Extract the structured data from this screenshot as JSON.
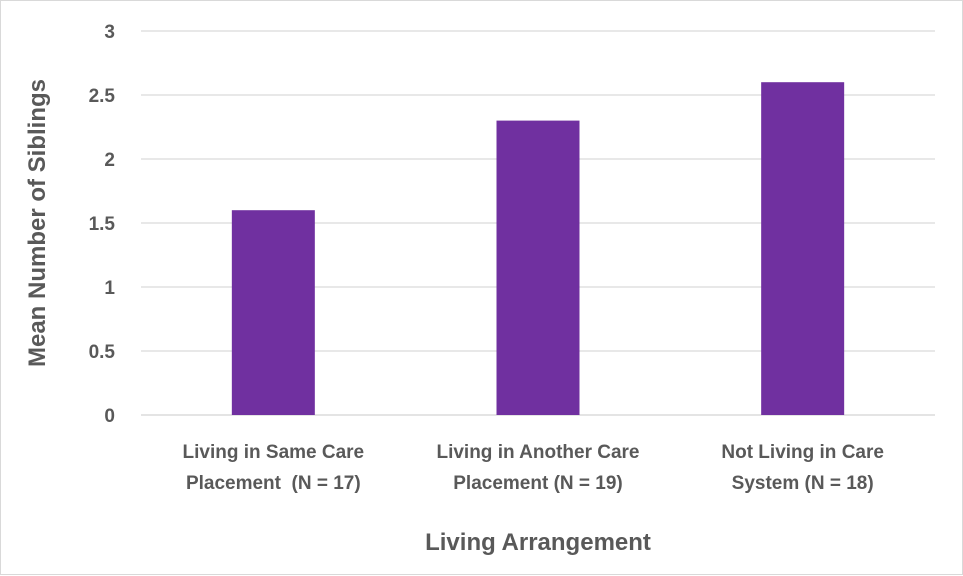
{
  "chart_data": {
    "type": "bar",
    "title": "",
    "xlabel": "Living Arrangement",
    "ylabel": "Mean Number of Siblings",
    "ylim": [
      0,
      3
    ],
    "yticks": [
      0,
      0.5,
      1,
      1.5,
      2,
      2.5,
      3
    ],
    "ytick_labels": [
      "0",
      "0.5",
      "1",
      "1.5",
      "2",
      "2.5",
      "3"
    ],
    "grid": true,
    "legend": "none",
    "categories": [
      [
        "Living in Same Care",
        "Placement  (N = 17)"
      ],
      [
        "Living in Another Care",
        "Placement (N = 19)"
      ],
      [
        "Not Living in Care",
        "System (N = 18)"
      ]
    ],
    "values": [
      1.6,
      2.3,
      2.6
    ],
    "bar_color": "#7030a0",
    "grid_color": "#d9d9d9"
  }
}
